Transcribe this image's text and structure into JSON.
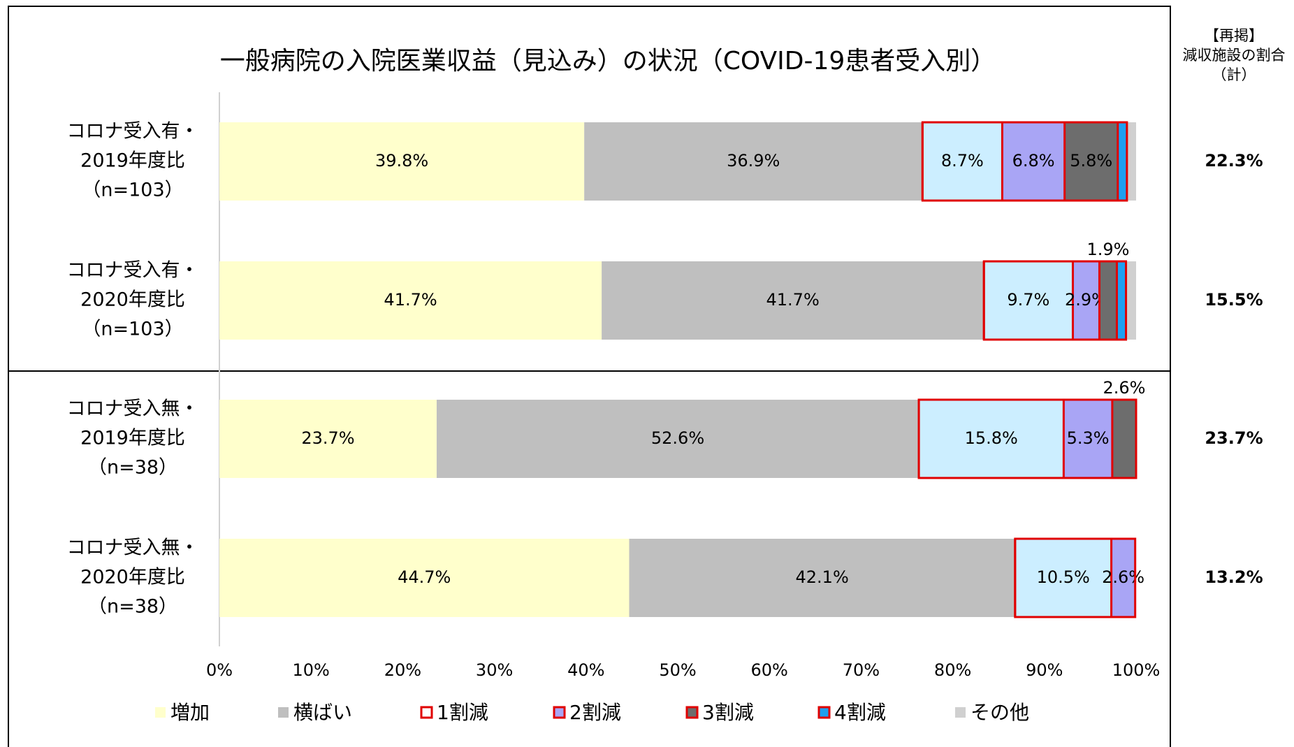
{
  "chart_data": {
    "type": "stacked_bar_horizontal",
    "title": "一般病院の入院医業収益（見込み）の状況（COVID-19患者受入別）",
    "categories": [
      [
        "コロナ受入有・",
        "2019年度比",
        "（n=103）"
      ],
      [
        "コロナ受入有・",
        "2020年度比",
        "（n=103）"
      ],
      [
        "コロナ受入無・",
        "2019年度比",
        "（n=38）"
      ],
      [
        "コロナ受入無・",
        "2020年度比",
        "（n=38）"
      ]
    ],
    "series": [
      {
        "name": "増加",
        "color": "#ffffcc",
        "values": [
          39.8,
          41.7,
          23.7,
          44.7
        ],
        "value_labels": [
          "39.8%",
          "41.7%",
          "23.7%",
          "44.7%"
        ]
      },
      {
        "name": "横ばい",
        "color": "#bfbfbf",
        "values": [
          36.9,
          41.7,
          52.6,
          42.1
        ],
        "value_labels": [
          "36.9%",
          "41.7%",
          "52.6%",
          "42.1%"
        ]
      },
      {
        "name": "1割減",
        "color": "#cceeff",
        "values": [
          8.7,
          9.7,
          15.8,
          10.5
        ],
        "value_labels": [
          "8.7%",
          "9.7%",
          "15.8%",
          "10.5%"
        ]
      },
      {
        "name": "2割減",
        "color": "#a9a5f5",
        "values": [
          6.8,
          2.9,
          5.3,
          2.6
        ],
        "value_labels": [
          "6.8%",
          "2.9%",
          "5.3%",
          "2.6%"
        ]
      },
      {
        "name": "3割減",
        "color": "#6d6d6d",
        "values": [
          5.8,
          1.9,
          2.6,
          0
        ],
        "value_labels": [
          "5.8%",
          "1.9%",
          "2.6%",
          null
        ]
      },
      {
        "name": "4割減",
        "color": "#1ea0f0",
        "values": [
          1.0,
          1.0,
          0,
          0
        ],
        "value_labels": [
          null,
          null,
          null,
          null
        ]
      },
      {
        "name": "その他",
        "color": "#d0d0d0",
        "values": [
          1.0,
          1.1,
          0,
          0
        ],
        "value_labels": [
          null,
          null,
          null,
          null
        ]
      }
    ],
    "xlim": [
      0,
      100
    ],
    "xticks": [
      {
        "value": 0,
        "label": "0%"
      },
      {
        "value": 10,
        "label": "10%"
      },
      {
        "value": 20,
        "label": "20%"
      },
      {
        "value": 30,
        "label": "30%"
      },
      {
        "value": 40,
        "label": "40%"
      },
      {
        "value": 50,
        "label": "50%"
      },
      {
        "value": 60,
        "label": "60%"
      },
      {
        "value": 70,
        "label": "70%"
      },
      {
        "value": 80,
        "label": "80%"
      },
      {
        "value": 90,
        "label": "90%"
      },
      {
        "value": 100,
        "label": "100%"
      }
    ],
    "reduction_total": {
      "title": [
        "【再掲】",
        "減収施設の割合",
        "（計）"
      ],
      "values": [
        22.3,
        15.5,
        23.7,
        13.2
      ],
      "value_labels": [
        "22.3%",
        "15.5%",
        "23.7%",
        "13.2%"
      ]
    }
  }
}
